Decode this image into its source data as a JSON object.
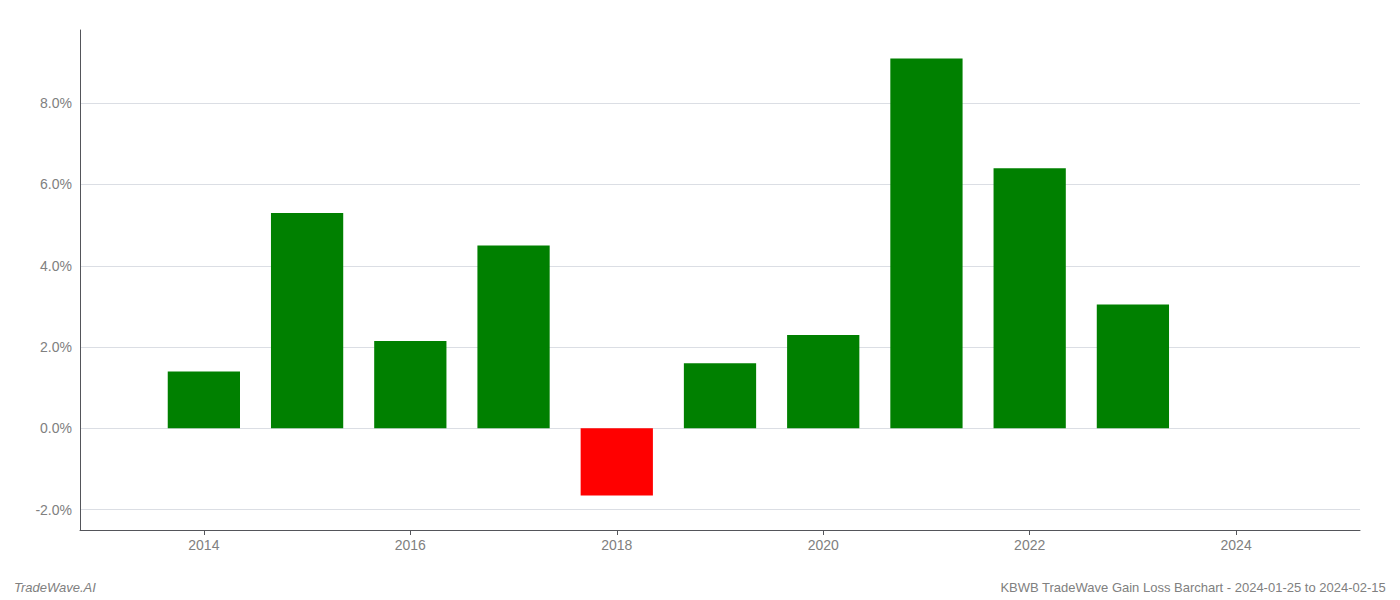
{
  "chart_data": {
    "type": "bar",
    "x": [
      2014,
      2015,
      2016,
      2017,
      2018,
      2019,
      2020,
      2021,
      2022,
      2023
    ],
    "values": [
      0.014,
      0.053,
      0.0215,
      0.045,
      -0.0165,
      0.016,
      0.023,
      0.091,
      0.064,
      0.0305
    ],
    "colors": [
      "#008000",
      "#008000",
      "#008000",
      "#008000",
      "#ff0000",
      "#008000",
      "#008000",
      "#008000",
      "#008000",
      "#008000"
    ],
    "xlim": [
      2012.8,
      2025.2
    ],
    "xticks": [
      2014,
      2016,
      2018,
      2020,
      2022,
      2024
    ],
    "ylim": [
      -0.025,
      0.098
    ],
    "yticks": [
      {
        "value": -0.02,
        "label": "-2.0%"
      },
      {
        "value": 0.0,
        "label": "0.0%"
      },
      {
        "value": 0.02,
        "label": "2.0%"
      },
      {
        "value": 0.04,
        "label": "4.0%"
      },
      {
        "value": 0.06,
        "label": "6.0%"
      },
      {
        "value": 0.08,
        "label": "8.0%"
      }
    ],
    "grid": true,
    "annotations": [
      "TradeWave.AI",
      "KBWB TradeWave Gain Loss Barchart - 2024-01-25 to 2024-02-15"
    ]
  }
}
